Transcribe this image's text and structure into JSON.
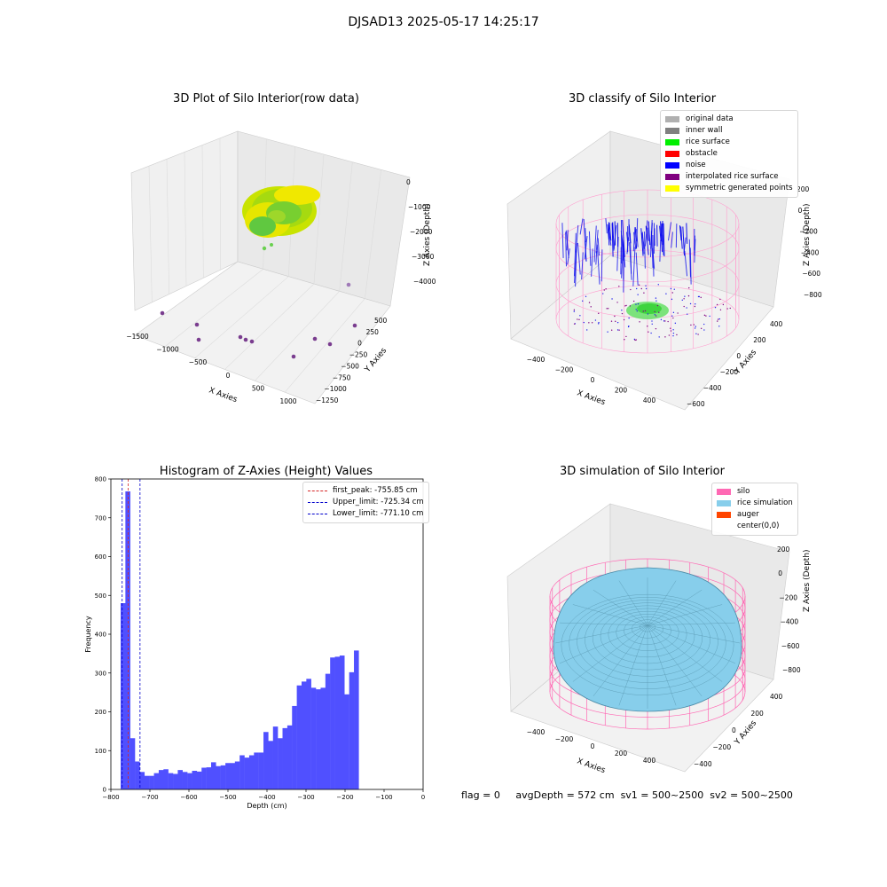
{
  "figure_title": "DJSAD13 2025-05-17 14:25:17",
  "panels": {
    "p1": {
      "title": "3D Plot of Silo Interior(row data)",
      "xlabel": "X Axies",
      "ylabel": "Y Axies",
      "zlabel": "Z Axies (Depth)",
      "x_ticks": [
        "−1500",
        "−1000",
        "−500",
        "0",
        "500",
        "1000"
      ],
      "y_ticks": [
        "500",
        "250",
        "0",
        "−250",
        "−500",
        "−750",
        "−1000",
        "−1250"
      ],
      "z_ticks": [
        "0",
        "−1000",
        "−2000",
        "−3000",
        "−4000"
      ]
    },
    "p2": {
      "title": "3D classify of Silo Interior",
      "xlabel": "X Axies",
      "ylabel": "Y Axies",
      "zlabel": "Z Axies (Depth)",
      "x_ticks": [
        "−400",
        "−200",
        "0",
        "200",
        "400"
      ],
      "y_ticks": [
        "400",
        "200",
        "0",
        "−200",
        "−400",
        "−600"
      ],
      "z_ticks": [
        "200",
        "0",
        "−200",
        "−400",
        "−600",
        "−800"
      ],
      "legend": [
        {
          "label": "original data",
          "color": "#b0b0b0"
        },
        {
          "label": "inner wall",
          "color": "#808080"
        },
        {
          "label": "rice surface",
          "color": "#00ee00"
        },
        {
          "label": "obstacle",
          "color": "#ff0000"
        },
        {
          "label": "noise",
          "color": "#0000ff"
        },
        {
          "label": "interpolated rice surface",
          "color": "#800080"
        },
        {
          "label": "symmetric generated points",
          "color": "#ffff00"
        }
      ]
    },
    "p4": {
      "title": "3D simulation of Silo Interior",
      "xlabel": "X Axies",
      "ylabel": "Y Axies",
      "zlabel": "Z Axies (Depth)",
      "x_ticks": [
        "−400",
        "−200",
        "0",
        "200",
        "400"
      ],
      "y_ticks": [
        "400",
        "200",
        "0",
        "−200",
        "−400"
      ],
      "z_ticks": [
        "200",
        "0",
        "−200",
        "−400",
        "−600",
        "−800"
      ],
      "legend": [
        {
          "label": "silo",
          "color": "#ff69b4"
        },
        {
          "label": "rice simulation",
          "color": "#87ceeb"
        },
        {
          "label": "auger",
          "color": "#ff4500"
        },
        {
          "label": "center(0,0)",
          "color": ""
        }
      ]
    }
  },
  "chart_data": {
    "type": "bar",
    "title": "Histogram of Z-Axies (Height) Values",
    "xlabel": "Depth (cm)",
    "ylabel": "Frequency",
    "xlim": [
      -800,
      0
    ],
    "ylim": [
      0,
      800
    ],
    "x_ticks": [
      -800,
      -700,
      -600,
      -500,
      -400,
      -300,
      -200,
      -100,
      0
    ],
    "y_ticks": [
      0,
      100,
      200,
      300,
      400,
      500,
      600,
      700,
      800
    ],
    "bin_start": -775,
    "bin_width": 12.2,
    "values": [
      480,
      768,
      132,
      72,
      45,
      35,
      35,
      42,
      50,
      52,
      42,
      40,
      50,
      45,
      42,
      48,
      46,
      56,
      57,
      70,
      60,
      62,
      68,
      68,
      72,
      88,
      82,
      88,
      95,
      95,
      148,
      125,
      162,
      132,
      158,
      165,
      215,
      268,
      278,
      285,
      262,
      258,
      262,
      298,
      340,
      342,
      345,
      245,
      302,
      358
    ],
    "color": "#5050ff",
    "lines": [
      {
        "label": "first_peak: -755.85 cm",
        "x": -755.85,
        "color": "#d62728"
      },
      {
        "label": "Upper_limit: -725.34 cm",
        "x": -725.34,
        "color": "#0000cc"
      },
      {
        "label": "Lower_limit: -771.10 cm",
        "x": -771.1,
        "color": "#0000cc"
      }
    ],
    "legend": "top-right"
  },
  "footer": {
    "flag": "flag = 0",
    "avg_depth": "avgDepth = 572 cm",
    "sv1": "sv1 = 500~2500",
    "sv2": "sv2 = 500~2500"
  }
}
